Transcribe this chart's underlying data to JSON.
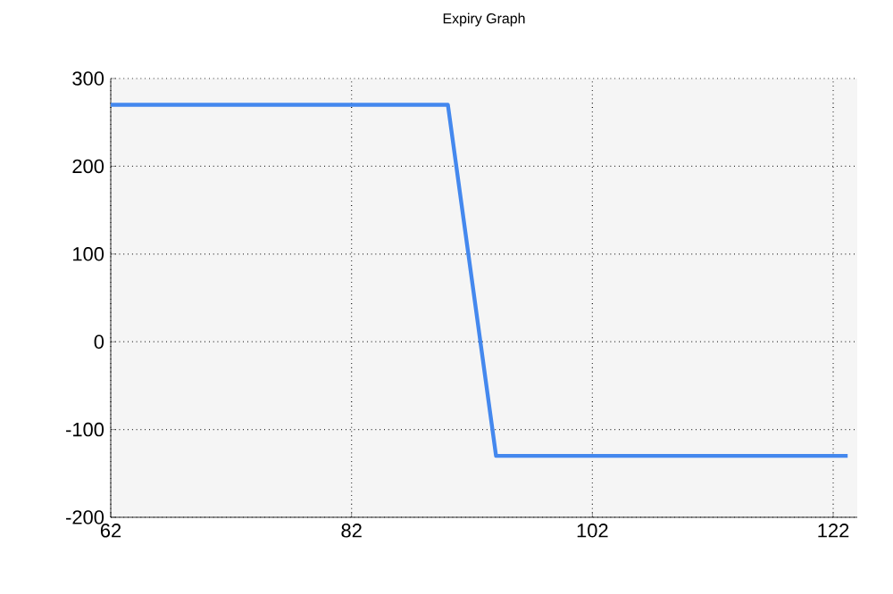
{
  "chart_data": {
    "type": "line",
    "title": "Expiry Graph",
    "x": [
      62,
      90,
      94,
      123.2
    ],
    "series": [
      {
        "color": "#4488ee",
        "values": [
          270,
          270,
          -130,
          -130
        ]
      }
    ],
    "xlim": [
      62,
      124
    ],
    "xticks": [
      62,
      82,
      102,
      122
    ],
    "ylim": [
      -200,
      300
    ],
    "yticks": [
      -200,
      -100,
      0,
      100,
      200,
      300
    ],
    "grid": true,
    "marker": "none",
    "line_style": "solid"
  }
}
